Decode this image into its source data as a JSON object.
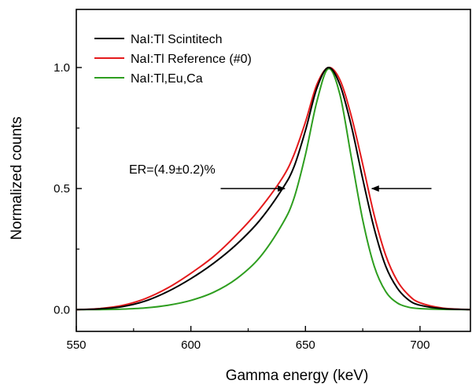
{
  "chart_data": {
    "type": "line",
    "title": "",
    "xlabel": "Gamma energy (keV)",
    "ylabel": "Normalized counts",
    "xlim": [
      550,
      722
    ],
    "ylim": [
      -0.09,
      1.24
    ],
    "xticks": [
      550,
      600,
      650,
      700
    ],
    "xtick_labels": [
      "550",
      "600",
      "650",
      "700"
    ],
    "yticks": [
      0.0,
      0.5,
      1.0
    ],
    "ytick_labels": [
      "0.0",
      "0.5",
      "1.0"
    ],
    "grid": false,
    "legend_position": "top-left",
    "series": [
      {
        "name": "NaI:Tl Scintitech",
        "color": "#000000",
        "x": [
          550,
          560,
          570,
          580,
          590,
          600,
          610,
          620,
          630,
          640,
          645,
          650,
          655,
          660,
          665,
          670,
          675,
          680,
          685,
          690,
          695,
          700,
          710,
          722
        ],
        "y": [
          0.0,
          0.003,
          0.012,
          0.035,
          0.075,
          0.128,
          0.192,
          0.27,
          0.368,
          0.5,
          0.59,
          0.74,
          0.915,
          1.0,
          0.93,
          0.76,
          0.54,
          0.335,
          0.18,
          0.09,
          0.04,
          0.018,
          0.004,
          0.0
        ]
      },
      {
        "name": "NaI:Tl Reference (#0)",
        "color": "#e41a1c",
        "x": [
          550,
          560,
          570,
          580,
          590,
          600,
          610,
          620,
          630,
          640,
          645,
          650,
          655,
          660,
          665,
          670,
          675,
          680,
          685,
          690,
          695,
          700,
          710,
          722
        ],
        "y": [
          0.0,
          0.004,
          0.017,
          0.045,
          0.09,
          0.15,
          0.22,
          0.31,
          0.415,
          0.545,
          0.64,
          0.775,
          0.93,
          1.0,
          0.95,
          0.8,
          0.6,
          0.39,
          0.225,
          0.12,
          0.06,
          0.028,
          0.006,
          0.0
        ]
      },
      {
        "name": "NaI:Tl,Eu,Ca",
        "color": "#2e9e1f",
        "x": [
          550,
          560,
          570,
          580,
          590,
          600,
          610,
          620,
          630,
          640,
          645,
          650,
          655,
          660,
          665,
          670,
          675,
          680,
          685,
          690,
          695,
          700,
          710,
          722
        ],
        "y": [
          0.0,
          0.0,
          0.002,
          0.007,
          0.018,
          0.038,
          0.072,
          0.128,
          0.215,
          0.355,
          0.46,
          0.64,
          0.86,
          0.995,
          0.89,
          0.63,
          0.37,
          0.18,
          0.075,
          0.028,
          0.01,
          0.004,
          0.001,
          0.0
        ]
      }
    ],
    "annotations": [
      {
        "text": "ER=(4.9±0.2)%",
        "arrows": [
          {
            "from": [
              613,
              0.5
            ],
            "to": [
              641,
              0.5
            ]
          },
          {
            "from": [
              705,
              0.5
            ],
            "to": [
              679,
              0.5
            ]
          }
        ]
      }
    ]
  }
}
